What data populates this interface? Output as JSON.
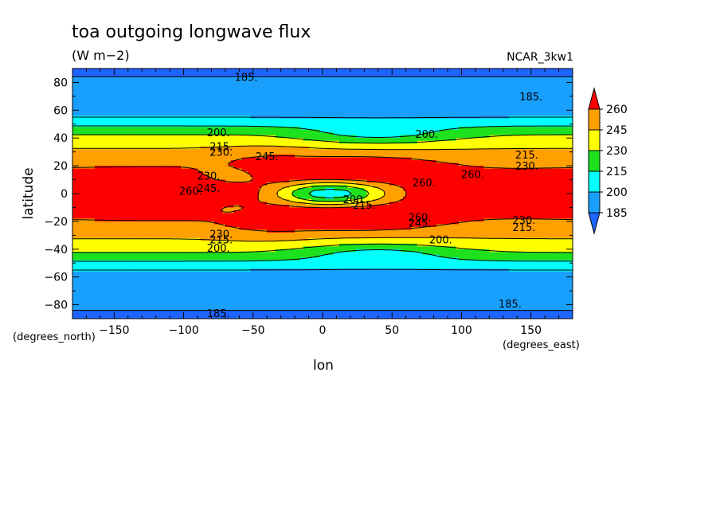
{
  "chart_data": {
    "type": "heatmap",
    "title": "toa outgoing longwave flux",
    "subtitle": "(W m−2)",
    "source_label": "NCAR_3kw1",
    "xlabel": "lon",
    "ylabel": "latitude",
    "x_unit_label": "(degrees_east)",
    "y_unit_label": "(degrees_north)",
    "xlim": [
      -180,
      180
    ],
    "ylim": [
      -90,
      90
    ],
    "x_ticks": [
      -150,
      -100,
      -50,
      0,
      50,
      100,
      150
    ],
    "x_tick_labels": [
      "−150",
      "−100",
      "−50",
      "0",
      "50",
      "100",
      "150"
    ],
    "y_ticks": [
      80,
      60,
      40,
      20,
      0,
      -20,
      -40,
      -60,
      -80
    ],
    "y_tick_labels": [
      "80",
      "60",
      "40",
      "20",
      "0",
      "−20",
      "−40",
      "−60",
      "−80"
    ],
    "levels": [
      185,
      200,
      215,
      230,
      245,
      260
    ],
    "colorbar_labels": [
      "260",
      "245",
      "230",
      "215",
      "200",
      "185"
    ],
    "colors": {
      "below_185": "#1e64ff",
      "185_200": "#19a0ff",
      "200_215": "#00ffff",
      "215_230": "#1ee11e",
      "230_245": "#ffff00",
      "245_260": "#ffa000",
      "above_260": "#ff0000"
    },
    "contour_labels": [
      {
        "text": "185.",
        "lon": -55,
        "lat": 84
      },
      {
        "text": "185.",
        "lon": 150,
        "lat": 70
      },
      {
        "text": "200.",
        "lon": -75,
        "lat": 44
      },
      {
        "text": "200.",
        "lon": 75,
        "lat": 43
      },
      {
        "text": "215.",
        "lon": -73,
        "lat": 34
      },
      {
        "text": "230.",
        "lon": -73,
        "lat": 30
      },
      {
        "text": "245.",
        "lon": -40,
        "lat": 27
      },
      {
        "text": "215.",
        "lon": 147,
        "lat": 28
      },
      {
        "text": "230.",
        "lon": 147,
        "lat": 20
      },
      {
        "text": "230.",
        "lon": -82,
        "lat": 13
      },
      {
        "text": "260.",
        "lon": 108,
        "lat": 14
      },
      {
        "text": "260.",
        "lon": 73,
        "lat": 8
      },
      {
        "text": "260.",
        "lon": -95,
        "lat": 2
      },
      {
        "text": "245.",
        "lon": -82,
        "lat": 4
      },
      {
        "text": "200.",
        "lon": 23,
        "lat": -4
      },
      {
        "text": "215.",
        "lon": 30,
        "lat": -8
      },
      {
        "text": "260.",
        "lon": 70,
        "lat": -17
      },
      {
        "text": "245.",
        "lon": 70,
        "lat": -21
      },
      {
        "text": "230.",
        "lon": 145,
        "lat": -19
      },
      {
        "text": "215.",
        "lon": 145,
        "lat": -24
      },
      {
        "text": "230.",
        "lon": -73,
        "lat": -29
      },
      {
        "text": "215.",
        "lon": -73,
        "lat": -33
      },
      {
        "text": "200.",
        "lon": -75,
        "lat": -39
      },
      {
        "text": "200.",
        "lon": 85,
        "lat": -33
      },
      {
        "text": "185.",
        "lon": -75,
        "lat": -86
      },
      {
        "text": "185.",
        "lon": 135,
        "lat": -79
      }
    ]
  }
}
